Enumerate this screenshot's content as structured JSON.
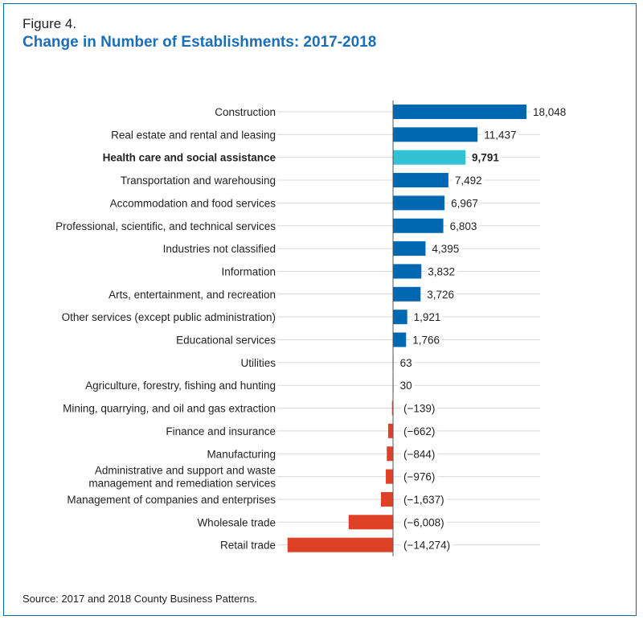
{
  "figure": {
    "label": "Figure 4.",
    "title": "Change in Number of Establishments: 2017-2018",
    "source": "Source: 2017 and 2018 County Business Patterns."
  },
  "colors": {
    "positive": "#0068b1",
    "highlight": "#33c1d6",
    "negative": "#df4127",
    "axis": "#555555",
    "grid": "#d9d9d9",
    "title": "#1a6fb8"
  },
  "chart_data": {
    "type": "bar",
    "orientation": "horizontal",
    "title": "Change in Number of Establishments: 2017-2018",
    "xlim": [
      -14274,
      18048
    ],
    "grid": false,
    "highlight_category": "Health care and social assistance",
    "categories": [
      [
        "Construction"
      ],
      [
        "Real estate and rental and leasing"
      ],
      [
        "Health care and social assistance"
      ],
      [
        "Transportation and warehousing"
      ],
      [
        "Accommodation and food services"
      ],
      [
        "Professional, scientific, and technical services"
      ],
      [
        "Industries not classified"
      ],
      [
        "Information"
      ],
      [
        "Arts, entertainment, and recreation"
      ],
      [
        "Other services (except public administration)"
      ],
      [
        "Educational services"
      ],
      [
        "Utilities"
      ],
      [
        "Agriculture, forestry, fishing and hunting"
      ],
      [
        "Mining, quarrying, and oil and gas extraction"
      ],
      [
        "Finance and insurance"
      ],
      [
        "Manufacturing"
      ],
      [
        "Administrative and support and waste",
        "management and remediation services"
      ],
      [
        "Management of companies and enterprises"
      ],
      [
        "Wholesale trade"
      ],
      [
        "Retail trade"
      ]
    ],
    "values": [
      18048,
      11437,
      9791,
      7492,
      6967,
      6803,
      4395,
      3832,
      3726,
      1921,
      1766,
      63,
      30,
      -139,
      -662,
      -844,
      -976,
      -1637,
      -6008,
      -14274
    ],
    "value_labels": [
      "18,048",
      "11,437",
      "9,791",
      "7,492",
      "6,967",
      "6,803",
      "4,395",
      "3,832",
      "3,726",
      "1,921",
      "1,766",
      "63",
      "30",
      "(−139)",
      "(−662)",
      "(−844)",
      "(−976)",
      "(−1,637)",
      "(−6,008)",
      "(−14,274)"
    ]
  }
}
